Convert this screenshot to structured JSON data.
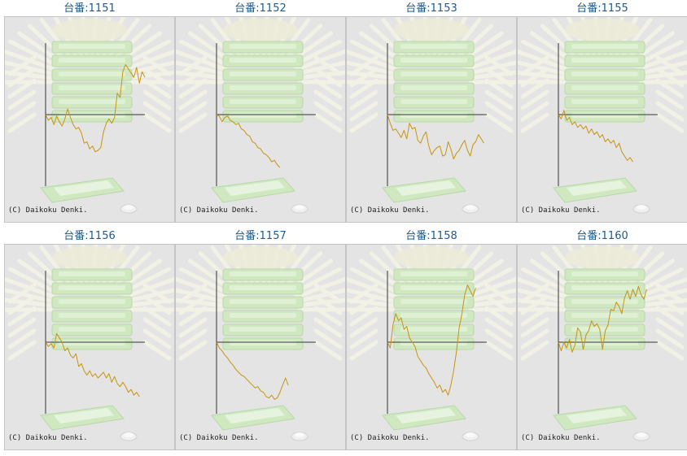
{
  "title_prefix": "台番:",
  "copyright": "(C) Daikoku Denki.",
  "colors": {
    "line": "#c89410",
    "axes": "#333333",
    "panel_bg": "#e4e4e4",
    "title": "#1e5a8e",
    "art_green": "#cfe8c0",
    "art_rays": "#f2f2e6"
  },
  "icons": [
    "sunburst-art",
    "stacked-tray-art",
    "tray-art",
    "coin-art"
  ],
  "chart_data": [
    {
      "type": "line",
      "machine_no": "1151",
      "label": "台番:1151",
      "xlim": [
        0,
        100
      ],
      "ylim": [
        -100,
        100
      ],
      "values": [
        0,
        -8,
        -4,
        -14,
        -2,
        -10,
        -16,
        -6,
        8,
        -4,
        -14,
        -20,
        -18,
        -26,
        -40,
        -38,
        -48,
        -44,
        -52,
        -50,
        -46,
        -24,
        -12,
        -6,
        -12,
        -4,
        30,
        24,
        60,
        70,
        64,
        58,
        52,
        66,
        44,
        60,
        52
      ]
    },
    {
      "type": "line",
      "machine_no": "1152",
      "label": "台番:1152",
      "xlim": [
        0,
        100
      ],
      "ylim": [
        -100,
        100
      ],
      "values": [
        0,
        -2,
        -10,
        -4,
        -2,
        -8,
        -10,
        -14,
        -12,
        -20,
        -22,
        -28,
        -30,
        -38,
        -40,
        -46,
        -48,
        -54,
        -56,
        -60,
        -66,
        -64,
        -70,
        -74
      ]
    },
    {
      "type": "line",
      "machine_no": "1153",
      "label": "台番:1153",
      "xlim": [
        0,
        100
      ],
      "ylim": [
        -100,
        100
      ],
      "values": [
        0,
        -12,
        -22,
        -20,
        -26,
        -32,
        -22,
        -34,
        -12,
        -20,
        -18,
        -36,
        -40,
        -30,
        -24,
        -44,
        -56,
        -50,
        -46,
        -44,
        -58,
        -56,
        -38,
        -48,
        -62,
        -54,
        -50,
        -42,
        -36,
        -50,
        -58,
        -42,
        -38,
        -28,
        -34,
        -40
      ]
    },
    {
      "type": "line",
      "machine_no": "1155",
      "label": "台番:1155",
      "xlim": [
        0,
        100
      ],
      "ylim": [
        -100,
        100
      ],
      "values": [
        0,
        -6,
        6,
        -8,
        -4,
        -14,
        -10,
        -18,
        -14,
        -20,
        -16,
        -26,
        -20,
        -28,
        -24,
        -32,
        -28,
        -38,
        -34,
        -40,
        -36,
        -46,
        -40,
        -52,
        -58,
        -64,
        -60,
        -66
      ]
    },
    {
      "type": "line",
      "machine_no": "1156",
      "label": "台番:1156",
      "xlim": [
        0,
        100
      ],
      "ylim": [
        -100,
        100
      ],
      "values": [
        0,
        -6,
        -2,
        -8,
        12,
        6,
        0,
        -12,
        -8,
        -18,
        -22,
        -16,
        -34,
        -30,
        -40,
        -46,
        -40,
        -48,
        -44,
        -50,
        -46,
        -42,
        -50,
        -44,
        -56,
        -48,
        -58,
        -62,
        -56,
        -62,
        -70,
        -66,
        -74,
        -70,
        -76
      ]
    },
    {
      "type": "line",
      "machine_no": "1157",
      "label": "台番:1157",
      "xlim": [
        0,
        100
      ],
      "ylim": [
        -100,
        100
      ],
      "values": [
        0,
        -8,
        -12,
        -18,
        -22,
        -28,
        -32,
        -38,
        -42,
        -46,
        -48,
        -52,
        -56,
        -60,
        -64,
        -62,
        -68,
        -70,
        -76,
        -78,
        -74,
        -80,
        -78,
        -70,
        -60,
        -50,
        -60
      ]
    },
    {
      "type": "line",
      "machine_no": "1158",
      "label": "台番:1158",
      "xlim": [
        0,
        100
      ],
      "ylim": [
        -100,
        100
      ],
      "values": [
        0,
        -8,
        24,
        40,
        30,
        34,
        18,
        22,
        6,
        0,
        -6,
        -20,
        -26,
        -32,
        -36,
        -44,
        -50,
        -56,
        -64,
        -60,
        -70,
        -66,
        -74,
        -60,
        -40,
        -14,
        20,
        40,
        66,
        80,
        72,
        64,
        76
      ]
    },
    {
      "type": "line",
      "machine_no": "1160",
      "label": "台番:1160",
      "xlim": [
        0,
        100
      ],
      "ylim": [
        -100,
        100
      ],
      "values": [
        0,
        -12,
        0,
        -8,
        4,
        -14,
        -4,
        20,
        14,
        -10,
        10,
        16,
        30,
        22,
        26,
        18,
        -10,
        16,
        24,
        46,
        44,
        56,
        50,
        40,
        62,
        72,
        60,
        74,
        64,
        78,
        66,
        60,
        74
      ]
    }
  ]
}
